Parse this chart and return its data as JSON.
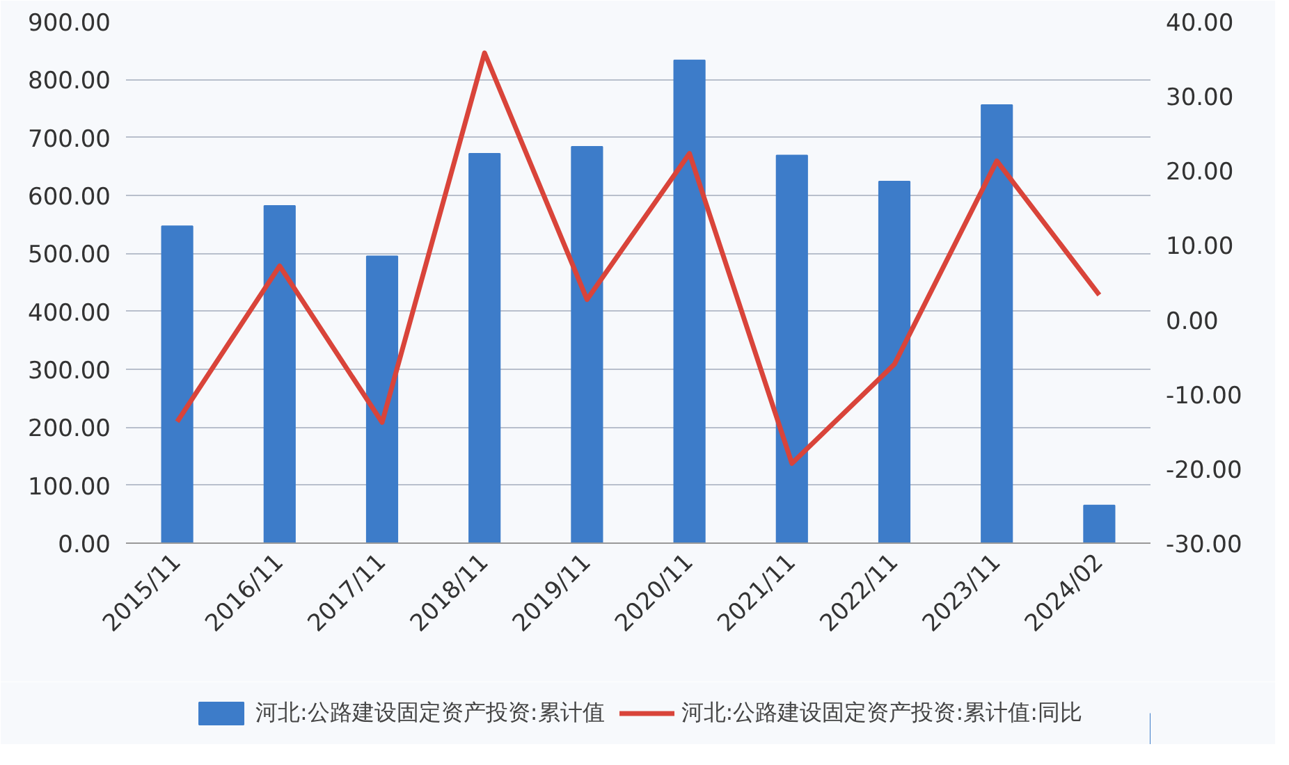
{
  "chart_data": {
    "type": "bar",
    "categories": [
      "2015/11",
      "2016/11",
      "2017/11",
      "2018/11",
      "2019/11",
      "2020/11",
      "2021/11",
      "2022/11",
      "2023/11",
      "2024/02"
    ],
    "series": [
      {
        "name": "河北:公路建设固定资产投资:累计值",
        "color": "#3d7cc9",
        "values": [
          547,
          582,
          495,
          672,
          684,
          833,
          669,
          624,
          756,
          65
        ]
      },
      {
        "name": "河北:公路建设固定资产投资:累计值:同比",
        "type": "line",
        "axis": "y2",
        "color": "#d9443a",
        "values": [
          -13.7,
          7.2,
          -13.8,
          35.8,
          2.7,
          22.3,
          -19.3,
          -6.0,
          21.3,
          3.3
        ]
      }
    ],
    "ylim": [
      0,
      900
    ],
    "yticks": [
      {
        "value": 0,
        "label": "0.00"
      },
      {
        "value": 100,
        "label": "100.00"
      },
      {
        "value": 200,
        "label": "200.00"
      },
      {
        "value": 300,
        "label": "300.00"
      },
      {
        "value": 400,
        "label": "400.00"
      },
      {
        "value": 500,
        "label": "500.00"
      },
      {
        "value": 600,
        "label": "600.00"
      },
      {
        "value": 700,
        "label": "700.00"
      },
      {
        "value": 800,
        "label": "800.00"
      },
      {
        "value": 900,
        "label": "900.00"
      }
    ],
    "y2lim": [
      -30,
      40
    ],
    "y2ticks": [
      {
        "value": -30,
        "label": "-30.00"
      },
      {
        "value": -20,
        "label": "-20.00"
      },
      {
        "value": -10,
        "label": "-10.00"
      },
      {
        "value": 0,
        "label": "0.00"
      },
      {
        "value": 10,
        "label": "10.00"
      },
      {
        "value": 20,
        "label": "20.00"
      },
      {
        "value": 30,
        "label": "30.00"
      },
      {
        "value": 40,
        "label": "40.00"
      }
    ],
    "grid": "y",
    "legend": "bottom",
    "line_style": "solid"
  }
}
